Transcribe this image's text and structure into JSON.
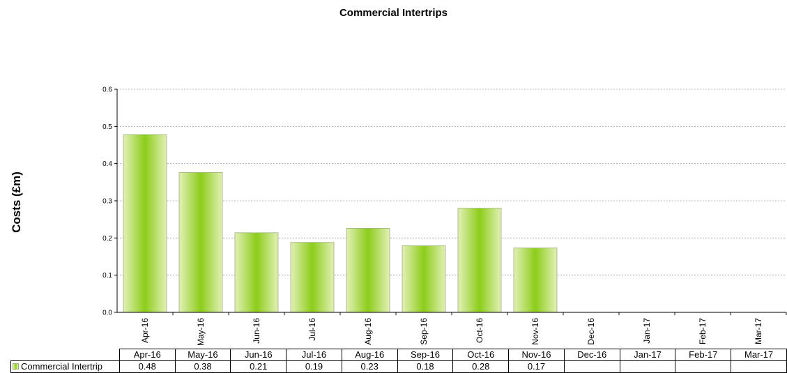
{
  "chart_data": {
    "type": "bar",
    "title": "Commercial Intertrips",
    "xlabel": "",
    "ylabel": "Costs (£m)",
    "categories": [
      "Apr-16",
      "May-16",
      "Jun-16",
      "Jul-16",
      "Aug-16",
      "Sep-16",
      "Oct-16",
      "Nov-16",
      "Dec-16",
      "Jan-17",
      "Feb-17",
      "Mar-17"
    ],
    "series": [
      {
        "name": "Commercial Intertrip",
        "values": [
          0.478,
          0.376,
          0.214,
          0.188,
          0.226,
          0.179,
          0.28,
          0.173,
          null,
          null,
          null,
          null
        ],
        "labels": [
          "0.48",
          "0.38",
          "0.21",
          "0.19",
          "0.23",
          "0.18",
          "0.28",
          "0.17",
          "",
          "",
          "",
          ""
        ]
      }
    ],
    "ylim": [
      0,
      0.6
    ],
    "yticks": [
      "0.0",
      "0.1",
      "0.2",
      "0.3",
      "0.4",
      "0.5",
      "0.6"
    ],
    "grid": true,
    "legend": "data-table"
  },
  "colors": {
    "bar_center": "#8ccd1a",
    "bar_edge": "#e3f0b8",
    "bar_stroke": "#9ab070",
    "grid": "#a0a0a0"
  }
}
